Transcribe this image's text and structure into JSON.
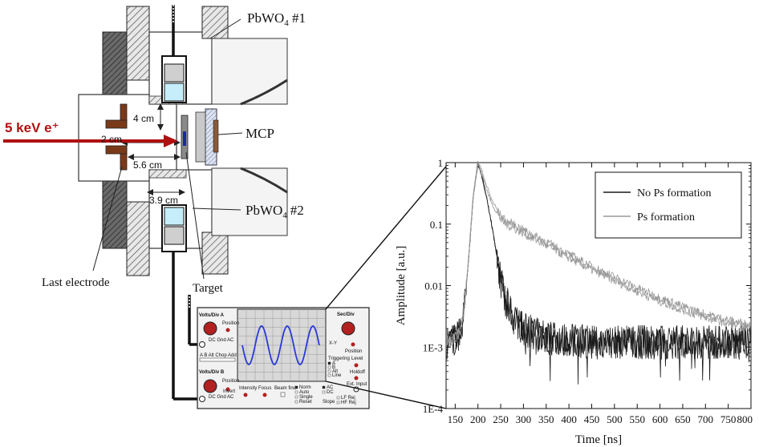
{
  "diagram": {
    "beam_label": "5 keV e⁺",
    "pbwo4_top_label": "PbWO",
    "pbwo4_top_sub": "4",
    "pbwo4_top_num": " #1",
    "pbwo4_bottom_label": "PbWO",
    "pbwo4_bottom_sub": "4",
    "pbwo4_bottom_num": "#2",
    "mcp_label": "MCP",
    "target_label": "Target",
    "last_electrode_label": "Last electrode",
    "dim_4cm": "4 cm",
    "dim_2cm": "2 cm",
    "dim_5_6cm": "5.6 cm",
    "dim_3_9cm": "3.9 cm",
    "beam_color": "#b01010"
  },
  "oscilloscope": {
    "volts_div_a": "Volts/Div A",
    "volts_div_b": "Volts/Div B",
    "sec_div": "Sec/Div",
    "position_a": "Position",
    "position_b": "Position",
    "position_r": "Position",
    "coupling_a": "DC Gnd AC",
    "coupling_b": "DC Gnd AC",
    "mode_row": "A B Alt Chop Add",
    "intensity": "Intensity",
    "focus": "Focus",
    "beam_find": "Beam find",
    "invert": "Invert",
    "xy": "X-Y",
    "triggering": "Triggering",
    "trig_sources": [
      "A",
      "B",
      "Alt",
      "Line"
    ],
    "level": "Level",
    "holdoff": "Holdoff",
    "ext_input": "Ext. Input",
    "modes": [
      "Norm",
      "Auto",
      "Single",
      "Reset"
    ],
    "coup2": [
      "AC",
      "DC"
    ],
    "slope": "Slope",
    "filters": [
      "LF Rej",
      "HF Rej"
    ]
  },
  "chart_data": {
    "type": "line",
    "xlabel": "Time [ns]",
    "ylabel": "Amplitude [a.u.]",
    "xlim": [
      130,
      800
    ],
    "ylim": [
      0.0001,
      1
    ],
    "yscale": "log",
    "x_ticks": [
      150,
      200,
      250,
      300,
      350,
      400,
      450,
      500,
      550,
      600,
      650,
      700,
      750,
      800
    ],
    "y_ticks": [
      {
        "value": 1,
        "label": "1"
      },
      {
        "value": 0.1,
        "label": "0.1"
      },
      {
        "value": 0.01,
        "label": "0.01"
      },
      {
        "value": 0.001,
        "label": "1E-3"
      },
      {
        "value": 0.0001,
        "label": "1E-4"
      }
    ],
    "legend_position": "top-right",
    "series": [
      {
        "name": "No Ps formation",
        "color": "#1a1a1a",
        "x": [
          140,
          160,
          170,
          180,
          190,
          200,
          210,
          220,
          230,
          240,
          250,
          260,
          270,
          280,
          290,
          300,
          320,
          350,
          400,
          450,
          500,
          550,
          600,
          650,
          700,
          750,
          800
        ],
        "y": [
          0.0012,
          0.0016,
          0.004,
          0.03,
          0.3,
          0.95,
          0.55,
          0.25,
          0.1,
          0.035,
          0.012,
          0.006,
          0.004,
          0.0028,
          0.0024,
          0.002,
          0.0017,
          0.0014,
          0.0013,
          0.0012,
          0.0012,
          0.0012,
          0.0012,
          0.0012,
          0.0012,
          0.0012,
          0.0012
        ]
      },
      {
        "name": "Ps formation",
        "color": "#999999",
        "x": [
          140,
          160,
          170,
          180,
          190,
          200,
          210,
          220,
          230,
          240,
          250,
          260,
          280,
          300,
          350,
          400,
          450,
          500,
          550,
          600,
          650,
          700,
          750,
          800
        ],
        "y": [
          0.0012,
          0.0016,
          0.004,
          0.03,
          0.3,
          0.95,
          0.6,
          0.35,
          0.22,
          0.16,
          0.12,
          0.1,
          0.085,
          0.07,
          0.045,
          0.028,
          0.018,
          0.012,
          0.008,
          0.0055,
          0.004,
          0.003,
          0.0024,
          0.002
        ]
      }
    ]
  }
}
